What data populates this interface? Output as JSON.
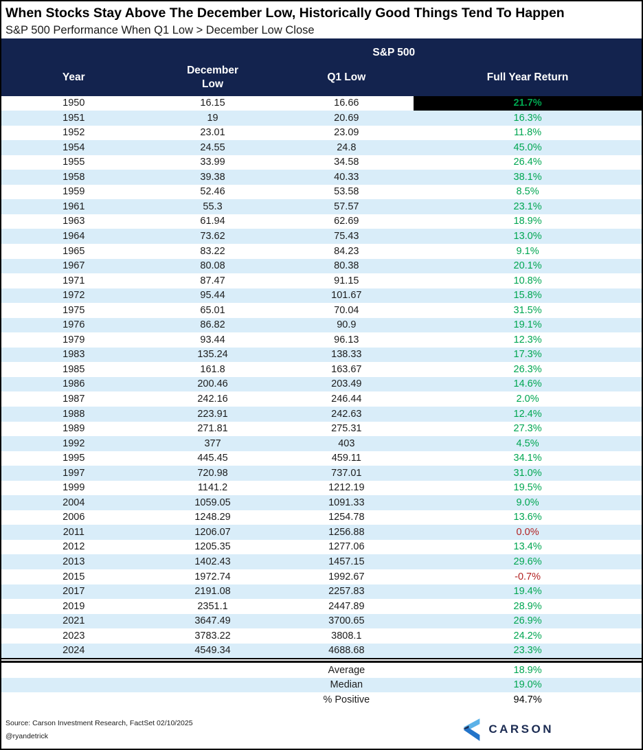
{
  "chart_data": {
    "type": "table",
    "title": "When Stocks Stay Above The December Low, Historically Good Things Tend To Happen",
    "subtitle": "S&P 500 Performance When Q1 Low > December Low Close",
    "group_header": "S&P 500",
    "columns": [
      "Year",
      "December Low",
      "Q1 Low",
      "Full Year Return"
    ],
    "rows": [
      [
        "1950",
        "16.15",
        "16.66",
        "21.7%"
      ],
      [
        "1951",
        "19",
        "20.69",
        "16.3%"
      ],
      [
        "1952",
        "23.01",
        "23.09",
        "11.8%"
      ],
      [
        "1954",
        "24.55",
        "24.8",
        "45.0%"
      ],
      [
        "1955",
        "33.99",
        "34.58",
        "26.4%"
      ],
      [
        "1958",
        "39.38",
        "40.33",
        "38.1%"
      ],
      [
        "1959",
        "52.46",
        "53.58",
        "8.5%"
      ],
      [
        "1961",
        "55.3",
        "57.57",
        "23.1%"
      ],
      [
        "1963",
        "61.94",
        "62.69",
        "18.9%"
      ],
      [
        "1964",
        "73.62",
        "75.43",
        "13.0%"
      ],
      [
        "1965",
        "83.22",
        "84.23",
        "9.1%"
      ],
      [
        "1967",
        "80.08",
        "80.38",
        "20.1%"
      ],
      [
        "1971",
        "87.47",
        "91.15",
        "10.8%"
      ],
      [
        "1972",
        "95.44",
        "101.67",
        "15.8%"
      ],
      [
        "1975",
        "65.01",
        "70.04",
        "31.5%"
      ],
      [
        "1976",
        "86.82",
        "90.9",
        "19.1%"
      ],
      [
        "1979",
        "93.44",
        "96.13",
        "12.3%"
      ],
      [
        "1983",
        "135.24",
        "138.33",
        "17.3%"
      ],
      [
        "1985",
        "161.8",
        "163.67",
        "26.3%"
      ],
      [
        "1986",
        "200.46",
        "203.49",
        "14.6%"
      ],
      [
        "1987",
        "242.16",
        "246.44",
        "2.0%"
      ],
      [
        "1988",
        "223.91",
        "242.63",
        "12.4%"
      ],
      [
        "1989",
        "271.81",
        "275.31",
        "27.3%"
      ],
      [
        "1992",
        "377",
        "403",
        "4.5%"
      ],
      [
        "1995",
        "445.45",
        "459.11",
        "34.1%"
      ],
      [
        "1997",
        "720.98",
        "737.01",
        "31.0%"
      ],
      [
        "1999",
        "1141.2",
        "1212.19",
        "19.5%"
      ],
      [
        "2004",
        "1059.05",
        "1091.33",
        "9.0%"
      ],
      [
        "2006",
        "1248.29",
        "1254.78",
        "13.6%"
      ],
      [
        "2011",
        "1206.07",
        "1256.88",
        "0.0%"
      ],
      [
        "2012",
        "1205.35",
        "1277.06",
        "13.4%"
      ],
      [
        "2013",
        "1402.43",
        "1457.15",
        "29.6%"
      ],
      [
        "2015",
        "1972.74",
        "1992.67",
        "-0.7%"
      ],
      [
        "2017",
        "2191.08",
        "2257.83",
        "19.4%"
      ],
      [
        "2019",
        "2351.1",
        "2447.89",
        "28.9%"
      ],
      [
        "2021",
        "3647.49",
        "3700.65",
        "26.9%"
      ],
      [
        "2023",
        "3783.22",
        "3808.1",
        "24.2%"
      ],
      [
        "2024",
        "4549.34",
        "4688.68",
        "23.3%"
      ]
    ],
    "summary": [
      {
        "label": "Average",
        "value": "18.9%",
        "value_color": "green"
      },
      {
        "label": "Median",
        "value": "19.0%",
        "value_color": "green"
      },
      {
        "label": "% Positive",
        "value": "94.7%",
        "value_color": "black"
      }
    ],
    "highlighted_year": "1950",
    "row_striping": "alternating white and light blue",
    "legend_position": "none",
    "grid": false
  },
  "footer": {
    "source": "Source: Carson Investment Research, FactSet 02/10/2025",
    "handle": "@ryandetrick",
    "logo_text": "CARSON"
  },
  "colors": {
    "header_navy": "#13234e",
    "row_alt_blue": "#d9edf9",
    "positive_green": "#00a651",
    "negative_red": "#b22222",
    "highlight_black": "#000000",
    "logo_light_blue": "#5cb2e8",
    "logo_dark_blue": "#2374c9",
    "logo_navy": "#1b2b52"
  }
}
